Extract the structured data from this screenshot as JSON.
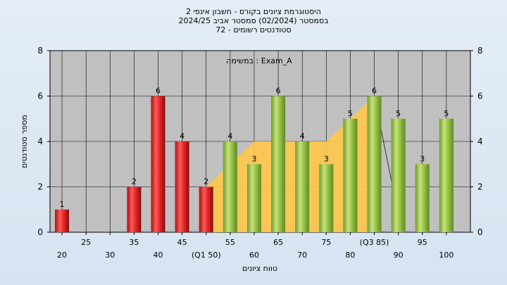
{
  "chart_data": {
    "type": "bar",
    "title_lines": [
      "היסטוגרמת ציונים בקורס - חשבון אינפי 2",
      "בסמסטר  (02/2024)  סמסטר אביב 2024/25",
      "סטודנטים רשומים - 72"
    ],
    "annotation": "במשימה : Exam_A",
    "xlabel": "טווח ציונים",
    "ylabel": "מספר סטודנטים",
    "ylim": [
      0,
      8
    ],
    "yticks": [
      0,
      2,
      4,
      6,
      8
    ],
    "x_tick_labels": [
      "20",
      "25",
      "30",
      "35",
      "40",
      "45",
      "(Q1 50)",
      "55",
      "60",
      "65",
      "70",
      "75",
      "80",
      "(Q3 85)",
      "90",
      "95",
      "100"
    ],
    "bars": [
      {
        "x": 20,
        "value": 1,
        "group": "below_q1"
      },
      {
        "x": 35,
        "value": 2,
        "group": "below_q1"
      },
      {
        "x": 40,
        "value": 6,
        "group": "below_q1"
      },
      {
        "x": 45,
        "value": 4,
        "group": "below_q1"
      },
      {
        "x": 50,
        "value": 2,
        "group": "below_q1"
      },
      {
        "x": 55,
        "value": 4,
        "group": "above_q1"
      },
      {
        "x": 60,
        "value": 3,
        "group": "above_q1"
      },
      {
        "x": 65,
        "value": 6,
        "group": "above_q1"
      },
      {
        "x": 70,
        "value": 4,
        "group": "above_q1"
      },
      {
        "x": 75,
        "value": 3,
        "group": "above_q1"
      },
      {
        "x": 80,
        "value": 5,
        "group": "above_q1"
      },
      {
        "x": 85,
        "value": 6,
        "group": "above_q1"
      },
      {
        "x": 90,
        "value": 5,
        "group": "above_q1"
      },
      {
        "x": 95,
        "value": 3,
        "group": "above_q1"
      },
      {
        "x": 100,
        "value": 5,
        "group": "above_q1"
      }
    ],
    "area_band": [
      {
        "x": 50,
        "value": 2
      },
      {
        "x": 60,
        "value": 4
      },
      {
        "x": 75,
        "value": 4
      },
      {
        "x": 85,
        "value": 6
      },
      {
        "x": 85,
        "value": 2
      }
    ],
    "colors": {
      "plot_bg": "#c0c0c0",
      "red": "#e03030",
      "green": "#9bc44a",
      "area": "#ffc84a",
      "grid": "#000000"
    },
    "grid": true
  }
}
